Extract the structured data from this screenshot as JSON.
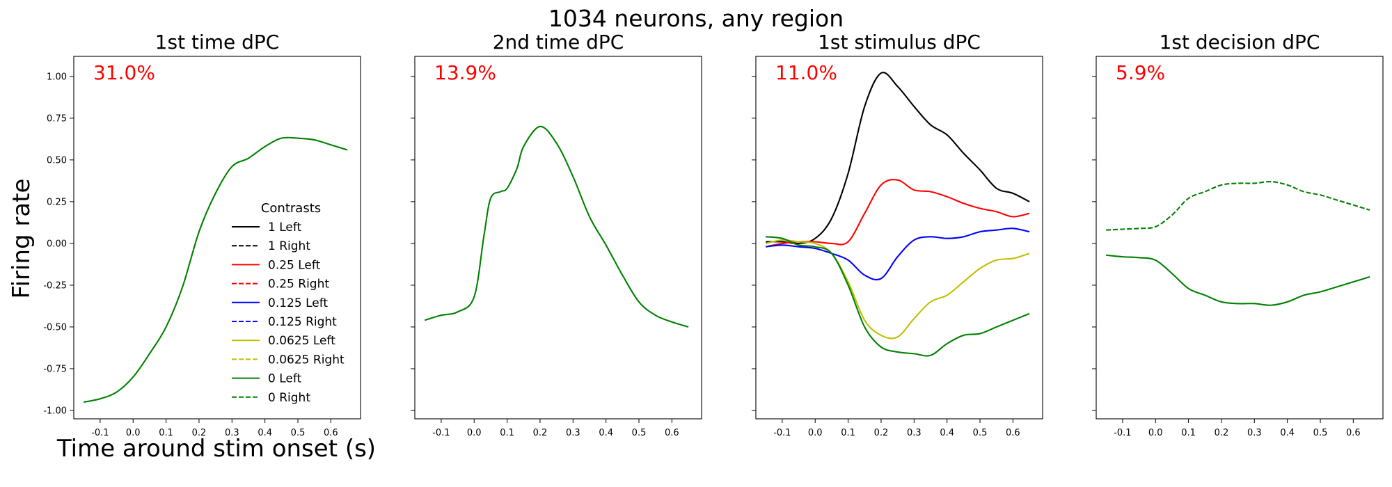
{
  "suptitle": "1034 neurons, any region",
  "ylabel": "Firing rate",
  "xlabel": "Time around stim onset (s)",
  "legend": {
    "title": "Contrasts",
    "entries": [
      {
        "label": "1 Left",
        "color": "#000000",
        "dashed": false
      },
      {
        "label": "1 Right",
        "color": "#000000",
        "dashed": true
      },
      {
        "label": "0.25 Left",
        "color": "#ff0000",
        "dashed": false
      },
      {
        "label": "0.25 Right",
        "color": "#ff0000",
        "dashed": true
      },
      {
        "label": "0.125 Left",
        "color": "#0000ff",
        "dashed": false
      },
      {
        "label": "0.125 Right",
        "color": "#0000ff",
        "dashed": true
      },
      {
        "label": "0.0625 Left",
        "color": "#bfbf00",
        "dashed": false
      },
      {
        "label": "0.0625 Right",
        "color": "#bfbf00",
        "dashed": true
      },
      {
        "label": "0 Left",
        "color": "#008000",
        "dashed": false
      },
      {
        "label": "0 Right",
        "color": "#008000",
        "dashed": true
      }
    ]
  },
  "chart_data": [
    {
      "type": "line",
      "title": "1st time dPC",
      "variance_label": "31.0%",
      "variance_color": "#ff0000",
      "xlim": [
        -0.18,
        0.69
      ],
      "ylim": [
        -1.05,
        1.12
      ],
      "xticks": [
        "-0.1",
        "0.0",
        "0.1",
        "0.2",
        "0.3",
        "0.4",
        "0.5",
        "0.6"
      ],
      "yticks": [
        "1.00",
        "0.75",
        "0.50",
        "0.25",
        "0.00",
        "-0.25",
        "-0.50",
        "-0.75",
        "-1.00"
      ],
      "series": [
        {
          "name": "0 Left",
          "color": "#008000",
          "dashed": false,
          "x": [
            -0.15,
            -0.1,
            -0.05,
            0.0,
            0.05,
            0.1,
            0.15,
            0.2,
            0.25,
            0.3,
            0.35,
            0.4,
            0.45,
            0.5,
            0.55,
            0.6,
            0.65
          ],
          "y": [
            -0.95,
            -0.93,
            -0.89,
            -0.8,
            -0.66,
            -0.5,
            -0.26,
            0.07,
            0.3,
            0.46,
            0.51,
            0.58,
            0.63,
            0.63,
            0.62,
            0.59,
            0.56
          ]
        }
      ]
    },
    {
      "type": "line",
      "title": "2nd time dPC",
      "variance_label": "13.9%",
      "variance_color": "#ff0000",
      "xlim": [
        -0.18,
        0.69
      ],
      "ylim": [
        -1.05,
        1.12
      ],
      "xticks": [
        "-0.1",
        "0.0",
        "0.1",
        "0.2",
        "0.3",
        "0.4",
        "0.5",
        "0.6"
      ],
      "yticks": [],
      "series": [
        {
          "name": "0 Left",
          "color": "#008000",
          "dashed": false,
          "x": [
            -0.15,
            -0.1,
            -0.05,
            0.0,
            0.03,
            0.05,
            0.08,
            0.1,
            0.13,
            0.15,
            0.2,
            0.25,
            0.3,
            0.35,
            0.4,
            0.45,
            0.5,
            0.55,
            0.6,
            0.65
          ],
          "y": [
            -0.46,
            -0.43,
            -0.41,
            -0.32,
            0.05,
            0.27,
            0.31,
            0.33,
            0.45,
            0.58,
            0.7,
            0.6,
            0.4,
            0.16,
            -0.01,
            -0.19,
            -0.35,
            -0.43,
            -0.47,
            -0.5
          ]
        }
      ]
    },
    {
      "type": "line",
      "title": "1st stimulus dPC",
      "variance_label": "11.0%",
      "variance_color": "#ff0000",
      "xlim": [
        -0.18,
        0.69
      ],
      "ylim": [
        -1.05,
        1.12
      ],
      "xticks": [
        "-0.1",
        "0.0",
        "0.1",
        "0.2",
        "0.3",
        "0.4",
        "0.5",
        "0.6"
      ],
      "yticks": [],
      "series": [
        {
          "name": "1 Left",
          "color": "#000000",
          "dashed": false,
          "x": [
            -0.15,
            -0.1,
            -0.05,
            0.0,
            0.05,
            0.1,
            0.15,
            0.2,
            0.25,
            0.3,
            0.35,
            0.4,
            0.45,
            0.5,
            0.55,
            0.6,
            0.65
          ],
          "y": [
            0.01,
            0.01,
            0.0,
            0.03,
            0.15,
            0.42,
            0.82,
            1.02,
            0.94,
            0.82,
            0.71,
            0.65,
            0.54,
            0.44,
            0.33,
            0.3,
            0.25
          ]
        },
        {
          "name": "0.25 Left",
          "color": "#ff0000",
          "dashed": false,
          "x": [
            -0.15,
            -0.1,
            -0.05,
            0.0,
            0.05,
            0.1,
            0.15,
            0.2,
            0.25,
            0.3,
            0.35,
            0.4,
            0.45,
            0.5,
            0.55,
            0.6,
            0.65
          ],
          "y": [
            -0.02,
            0.0,
            0.01,
            0.01,
            0.0,
            0.01,
            0.18,
            0.35,
            0.38,
            0.32,
            0.31,
            0.28,
            0.24,
            0.21,
            0.19,
            0.16,
            0.18
          ]
        },
        {
          "name": "0.125 Left",
          "color": "#0000ff",
          "dashed": false,
          "x": [
            -0.15,
            -0.1,
            -0.05,
            0.0,
            0.05,
            0.1,
            0.15,
            0.2,
            0.25,
            0.3,
            0.35,
            0.4,
            0.45,
            0.5,
            0.55,
            0.6,
            0.65
          ],
          "y": [
            -0.02,
            -0.01,
            -0.02,
            -0.03,
            -0.06,
            -0.1,
            -0.19,
            -0.21,
            -0.08,
            0.02,
            0.04,
            0.03,
            0.04,
            0.07,
            0.08,
            0.09,
            0.07
          ]
        },
        {
          "name": "0.0625 Left",
          "color": "#bfbf00",
          "dashed": false,
          "x": [
            -0.15,
            -0.1,
            -0.05,
            0.0,
            0.05,
            0.1,
            0.15,
            0.2,
            0.25,
            0.3,
            0.35,
            0.4,
            0.45,
            0.5,
            0.55,
            0.6,
            0.65
          ],
          "y": [
            0.0,
            0.02,
            0.01,
            0.0,
            -0.06,
            -0.23,
            -0.46,
            -0.55,
            -0.56,
            -0.45,
            -0.35,
            -0.31,
            -0.23,
            -0.15,
            -0.1,
            -0.09,
            -0.06
          ]
        },
        {
          "name": "0 Left",
          "color": "#008000",
          "dashed": false,
          "x": [
            -0.15,
            -0.1,
            -0.05,
            0.0,
            0.05,
            0.1,
            0.15,
            0.2,
            0.25,
            0.3,
            0.35,
            0.4,
            0.45,
            0.5,
            0.55,
            0.6,
            0.65
          ],
          "y": [
            0.04,
            0.03,
            -0.01,
            -0.02,
            -0.06,
            -0.25,
            -0.5,
            -0.62,
            -0.65,
            -0.66,
            -0.67,
            -0.6,
            -0.55,
            -0.54,
            -0.5,
            -0.46,
            -0.42
          ]
        }
      ]
    },
    {
      "type": "line",
      "title": "1st decision dPC",
      "variance_label": "5.9%",
      "variance_color": "#ff0000",
      "xlim": [
        -0.18,
        0.69
      ],
      "ylim": [
        -1.05,
        1.12
      ],
      "xticks": [
        "-0.1",
        "0.0",
        "0.1",
        "0.2",
        "0.3",
        "0.4",
        "0.5",
        "0.6"
      ],
      "yticks": [],
      "series": [
        {
          "name": "0 Right",
          "color": "#008000",
          "dashed": true,
          "x": [
            -0.15,
            -0.1,
            -0.05,
            0.0,
            0.05,
            0.1,
            0.15,
            0.2,
            0.25,
            0.3,
            0.35,
            0.4,
            0.45,
            0.5,
            0.55,
            0.6,
            0.65
          ],
          "y": [
            0.08,
            0.085,
            0.09,
            0.1,
            0.17,
            0.27,
            0.31,
            0.35,
            0.36,
            0.36,
            0.37,
            0.35,
            0.31,
            0.29,
            0.26,
            0.23,
            0.2
          ]
        },
        {
          "name": "0 Left",
          "color": "#008000",
          "dashed": false,
          "x": [
            -0.15,
            -0.1,
            -0.05,
            0.0,
            0.05,
            0.1,
            0.15,
            0.2,
            0.25,
            0.3,
            0.35,
            0.4,
            0.45,
            0.5,
            0.55,
            0.6,
            0.65
          ],
          "y": [
            -0.07,
            -0.08,
            -0.085,
            -0.1,
            -0.18,
            -0.27,
            -0.31,
            -0.35,
            -0.36,
            -0.36,
            -0.37,
            -0.35,
            -0.31,
            -0.29,
            -0.26,
            -0.23,
            -0.2
          ]
        }
      ]
    }
  ]
}
